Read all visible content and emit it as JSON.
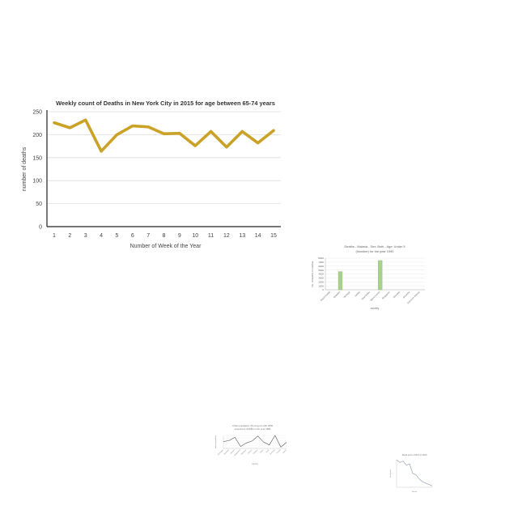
{
  "chart_data": [
    {
      "type": "line",
      "title": "Weekly count of Deaths in New York City in 2015 for age between 65-74 years",
      "xlabel": "Number of Week of the Year",
      "ylabel": "number of deaths",
      "categories": [
        "1",
        "2",
        "3",
        "4",
        "5",
        "6",
        "7",
        "8",
        "9",
        "10",
        "11",
        "12",
        "13",
        "14",
        "15"
      ],
      "values": [
        226,
        215,
        232,
        164,
        200,
        219,
        217,
        202,
        203,
        176,
        207,
        173,
        207,
        182,
        209
      ],
      "ylim": [
        0,
        250
      ],
      "yticks": [
        "0",
        "50",
        "100",
        "150",
        "200",
        "250"
      ],
      "grid": true,
      "color": "#C9A227"
    },
    {
      "type": "bar",
      "title": "Deaths - Malaria - Sex: Both - Age: Under 5 (Number) for the year 1990",
      "xlabel": "country",
      "ylabel": "No. of deaths in number",
      "categories": [
        "Saudi Arabia",
        "Eswatini",
        "Senegal",
        "Serbia",
        "Seychelles",
        "Sierra Leone",
        "Singapore",
        "Slovakia",
        "Slovenia",
        "Solomon Islands"
      ],
      "values": [
        0,
        4600,
        0,
        0,
        0,
        7400,
        0,
        0,
        0,
        0
      ],
      "ylim": [
        0,
        8000
      ],
      "yticks": [
        "0",
        "1000",
        "2000",
        "3000",
        "4000",
        "5000",
        "6000",
        "7000",
        "8000"
      ],
      "grid": true,
      "color": "#A9D18E"
    },
    {
      "type": "line",
      "title": "Urban population (%) long-run with 2050 projections (OWID) in the year 1980",
      "xlabel": "country",
      "ylabel": "urban population",
      "categories": [
        "Azerbaijan",
        "Bahamas",
        "Bahrain",
        "Bangladesh",
        "Barbados",
        "Belarus",
        "Belgium",
        "Belize",
        "Benin",
        "Bermuda",
        "Bhutan",
        "Bolivia"
      ],
      "values": [
        53,
        60,
        86,
        15,
        42,
        57,
        95,
        49,
        27,
        100,
        10,
        46
      ],
      "ylim": [
        0,
        100
      ],
      "grid": true,
      "color": "#555555"
    },
    {
      "type": "line",
      "title": "Stock price of IFCI in 2020",
      "xlabel": "Month",
      "ylabel": "Stock price",
      "values": [
        16,
        15,
        15.5,
        14,
        14.5,
        11,
        10.5,
        9,
        8,
        7.5,
        7,
        6.5
      ],
      "ylim": [
        6,
        16
      ],
      "grid": false,
      "color": "#9aa0b8"
    }
  ]
}
